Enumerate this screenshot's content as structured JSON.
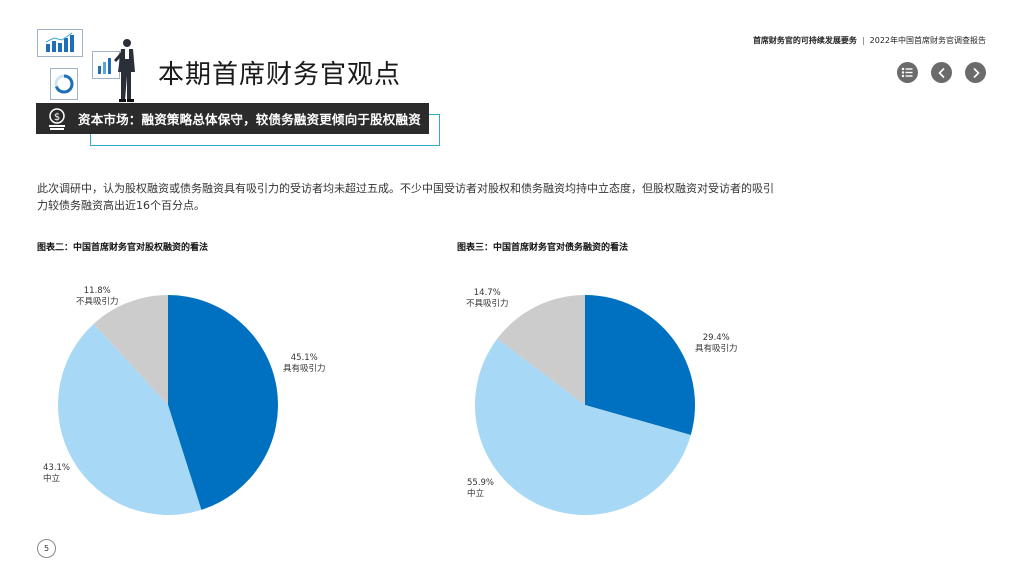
{
  "header": {
    "report_bold": "首席财务官的可持续发展要务",
    "separator": "|",
    "report_title": "2022年中国首席财务官调查报告"
  },
  "page_title": "本期首席财务官观点",
  "banner_text": "资本市场：融资策略总体保守，较债务融资更倾向于股权融资",
  "intro_text": "此次调研中，认为股权融资或债务融资具有吸引力的受访者均未超过五成。不少中国受访者对股权和债务融资均持中立态度，但股权融资对受访者的吸引力较债务融资高出近16个百分点。",
  "page_number": "5",
  "colors": {
    "dark_blue": "#0070c0",
    "light_blue": "#a7d8f5",
    "gray": "#cccccc",
    "banner_bg": "#2b2b2b",
    "accent_outline": "#33aacc"
  },
  "icons": [
    "menu-icon",
    "chevron-left-icon",
    "chevron-right-icon",
    "dollar-coin-icon"
  ],
  "chart_data": [
    {
      "type": "pie",
      "title": "图表二：中国首席财务官对股权融资的看法",
      "slices": [
        {
          "label": "具有吸引力",
          "value": 45.1,
          "display": "45.1%",
          "color": "#0070c0"
        },
        {
          "label": "中立",
          "value": 43.1,
          "display": "43.1%",
          "color": "#a7d8f5"
        },
        {
          "label": "不具吸引力",
          "value": 11.8,
          "display": "11.8%",
          "color": "#cccccc"
        }
      ]
    },
    {
      "type": "pie",
      "title": "图表三：中国首席财务官对债务融资的看法",
      "slices": [
        {
          "label": "具有吸引力",
          "value": 29.4,
          "display": "29.4%",
          "color": "#0070c0"
        },
        {
          "label": "中立",
          "value": 55.9,
          "display": "55.9%",
          "color": "#a7d8f5"
        },
        {
          "label": "不具吸引力",
          "value": 14.7,
          "display": "14.7%",
          "color": "#cccccc"
        }
      ]
    }
  ]
}
